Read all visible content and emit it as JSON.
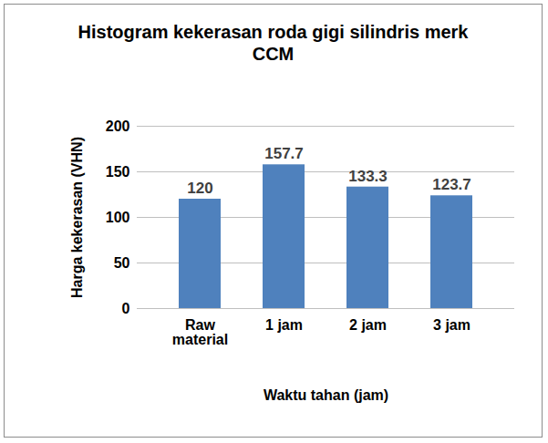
{
  "chart_data": {
    "type": "bar",
    "title": "Histogram kekerasan roda gigi silindris merk CCM",
    "x_label": "Waktu tahan (jam)",
    "y_label": "Harga kekerasan (VHN)",
    "categories": [
      "Raw material",
      "1 jam",
      "2 jam",
      "3 jam"
    ],
    "values": [
      120,
      157.7,
      133.3,
      123.7
    ],
    "color": "#4f81bd",
    "ylim": [
      0,
      200
    ],
    "yticks": [
      0,
      50,
      100,
      150,
      200
    ],
    "grid": true,
    "data_labels": true
  }
}
